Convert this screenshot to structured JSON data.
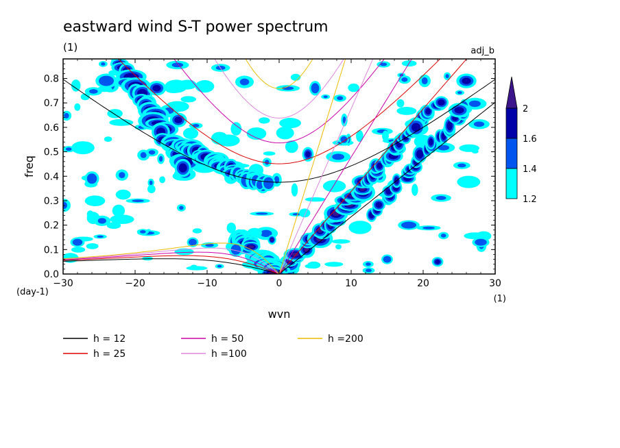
{
  "chart_data": {
    "type": "heatmap",
    "title": "eastward wind S-T power spectrum",
    "subtitle": "(1)",
    "corner_label": "adj_b",
    "xlabel": "wvn",
    "ylabel": "freq",
    "x_unit": "(1)",
    "y_unit": "(day-1)",
    "xlim": [
      -30,
      30
    ],
    "ylim": [
      0,
      0.88
    ],
    "x_ticks": [
      -30,
      -20,
      -10,
      0,
      10,
      20,
      30
    ],
    "y_ticks": [
      0.0,
      0.1,
      0.2,
      0.3,
      0.4,
      0.5,
      0.6,
      0.7,
      0.8
    ],
    "colorbar": {
      "levels": [
        1.2,
        1.4,
        1.6,
        2
      ],
      "colors": [
        "#00ffff",
        "#0055ee",
        "#0000a8",
        "#3c148c"
      ],
      "extend": "max"
    },
    "dispersion_curves": [
      {
        "label": "h = 12",
        "h": 12,
        "color": "#000000"
      },
      {
        "label": "h = 25",
        "h": 25,
        "color": "#dd0000"
      },
      {
        "label": "h = 50",
        "h": 50,
        "color": "#cc00aa"
      },
      {
        "label": "h =100",
        "h": 100,
        "color": "#dd88dd"
      },
      {
        "label": "h =200",
        "h": 200,
        "color": "#eebb00"
      }
    ],
    "power_regions": [
      {
        "x0": -22,
        "y0": 0.86,
        "x1": -13,
        "y1": 0.43,
        "w": 1.8,
        "level": 2
      },
      {
        "x0": -13,
        "y0": 0.52,
        "x1": -6,
        "y1": 0.42,
        "w": 1.5,
        "level": 2
      },
      {
        "x0": -6,
        "y0": 0.41,
        "x1": -2,
        "y1": 0.37,
        "w": 1.0,
        "level": 1
      },
      {
        "x0": 1,
        "y0": 0.02,
        "x1": 12,
        "y1": 0.37,
        "w": 1.5,
        "level": 3
      },
      {
        "x0": 12,
        "y0": 0.38,
        "x1": 22,
        "y1": 0.7,
        "w": 1.2,
        "level": 2
      },
      {
        "x0": 13,
        "y0": 0.25,
        "x1": 26,
        "y1": 0.68,
        "w": 1.0,
        "level": 2
      },
      {
        "x0": -3,
        "y0": 0.08,
        "x1": -0.5,
        "y1": 0.01,
        "w": 1.8,
        "level": 3
      },
      {
        "x0": -5.5,
        "y0": 0.15,
        "x1": -4,
        "y1": 0.11,
        "w": 1.2,
        "level": 3
      }
    ],
    "power_spots": [
      {
        "x": -6,
        "y": 0.1,
        "rx": 1.0,
        "ry": 0.03,
        "level": 1
      },
      {
        "x": -14,
        "y": 0.63,
        "rx": 1.2,
        "ry": 0.03,
        "level": 2
      },
      {
        "x": 5,
        "y": 0.76,
        "rx": 0.8,
        "ry": 0.03,
        "level": 1
      },
      {
        "x": 4,
        "y": 0.49,
        "rx": 0.8,
        "ry": 0.03,
        "level": 2
      },
      {
        "x": 18,
        "y": 0.2,
        "rx": 1.5,
        "ry": 0.02,
        "level": 1
      },
      {
        "x": 19,
        "y": 0.6,
        "rx": 1.4,
        "ry": 0.04,
        "level": 2
      },
      {
        "x": 25,
        "y": 0.67,
        "rx": 1.5,
        "ry": 0.03,
        "level": 2
      },
      {
        "x": 26,
        "y": 0.79,
        "rx": 1.4,
        "ry": 0.03,
        "level": 2
      },
      {
        "x": 22,
        "y": 0.05,
        "rx": 0.8,
        "ry": 0.02,
        "level": 2
      },
      {
        "x": -24,
        "y": 0.79,
        "rx": 1.5,
        "ry": 0.03,
        "level": 1
      },
      {
        "x": -17,
        "y": 0.76,
        "rx": 1.3,
        "ry": 0.03,
        "level": 2
      },
      {
        "x": -26,
        "y": 0.39,
        "rx": 1.0,
        "ry": 0.03,
        "level": 1
      },
      {
        "x": -1,
        "y": 0.14,
        "rx": 0.6,
        "ry": 0.02,
        "level": 3
      },
      {
        "x": -12,
        "y": 0.13,
        "rx": 0.8,
        "ry": 0.02,
        "level": 1
      },
      {
        "x": 9,
        "y": 0.55,
        "rx": 0.7,
        "ry": 0.02,
        "level": 1
      },
      {
        "x": 15,
        "y": 0.06,
        "rx": 0.8,
        "ry": 0.02,
        "level": 1
      },
      {
        "x": 28,
        "y": 0.13,
        "rx": 1.2,
        "ry": 0.02,
        "level": 1
      },
      {
        "x": -28,
        "y": 0.13,
        "rx": 1.0,
        "ry": 0.02,
        "level": 1
      }
    ]
  }
}
